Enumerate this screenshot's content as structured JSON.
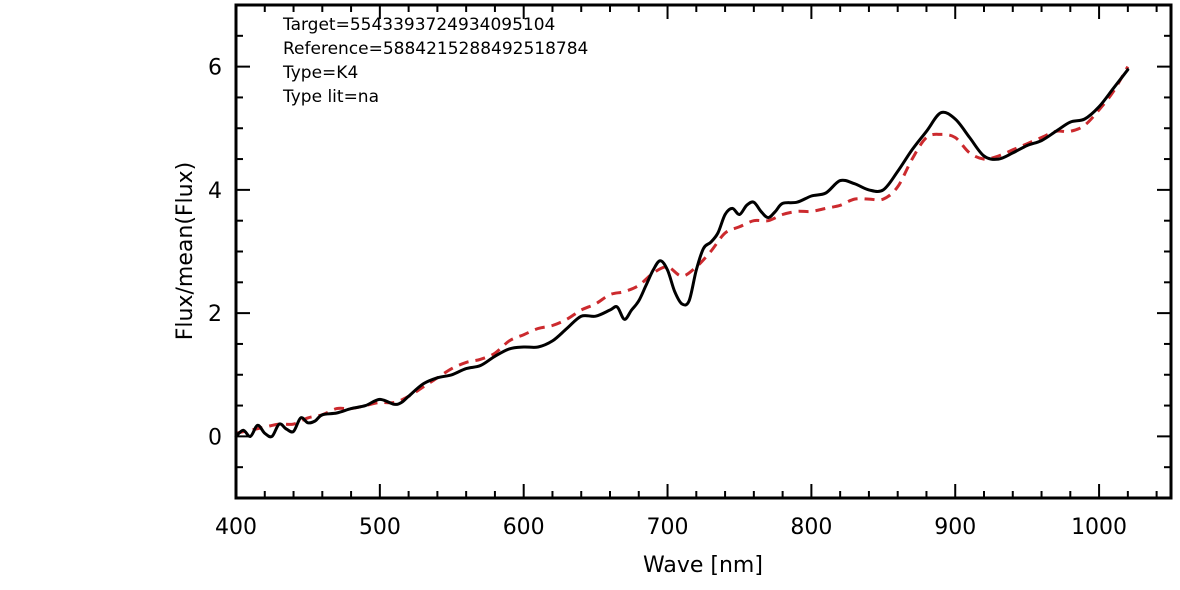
{
  "chart_data": {
    "type": "line",
    "xlabel": "Wave [nm]",
    "ylabel": "Flux/mean(Flux)",
    "xlim": [
      400,
      1050
    ],
    "ylim": [
      -1,
      7
    ],
    "x_ticks": [
      400,
      500,
      600,
      700,
      800,
      900,
      1000
    ],
    "x_tick_labels": [
      "400",
      "500",
      "600",
      "700",
      "800",
      "900",
      "1000"
    ],
    "y_ticks": [
      0,
      2,
      4,
      6
    ],
    "y_tick_labels": [
      "0",
      "2",
      "4",
      "6"
    ],
    "annotations": [
      "Target=5543393724934095104",
      "Reference=5884215288492518784",
      "Type=K4",
      "Type lit=na"
    ],
    "grid": false,
    "series": [
      {
        "color": "#000000",
        "style": "solid",
        "x": [
          400,
          405,
          410,
          415,
          420,
          425,
          430,
          435,
          440,
          445,
          450,
          455,
          460,
          470,
          480,
          490,
          500,
          510,
          515,
          520,
          530,
          540,
          550,
          560,
          570,
          580,
          590,
          600,
          610,
          620,
          630,
          640,
          650,
          660,
          665,
          670,
          675,
          680,
          685,
          690,
          695,
          700,
          705,
          710,
          715,
          720,
          725,
          730,
          735,
          740,
          745,
          750,
          755,
          760,
          765,
          770,
          775,
          780,
          790,
          800,
          810,
          820,
          830,
          840,
          850,
          860,
          870,
          880,
          890,
          900,
          910,
          920,
          930,
          940,
          950,
          960,
          970,
          980,
          990,
          1000,
          1010,
          1020
        ],
        "y": [
          0.0,
          0.1,
          0.0,
          0.18,
          0.05,
          0.0,
          0.2,
          0.12,
          0.08,
          0.3,
          0.22,
          0.25,
          0.35,
          0.38,
          0.45,
          0.5,
          0.6,
          0.52,
          0.55,
          0.65,
          0.85,
          0.95,
          1.0,
          1.1,
          1.15,
          1.3,
          1.42,
          1.45,
          1.45,
          1.55,
          1.75,
          1.95,
          1.95,
          2.05,
          2.1,
          1.9,
          2.05,
          2.2,
          2.45,
          2.7,
          2.85,
          2.7,
          2.35,
          2.15,
          2.2,
          2.7,
          3.05,
          3.15,
          3.3,
          3.6,
          3.7,
          3.6,
          3.75,
          3.8,
          3.65,
          3.55,
          3.65,
          3.78,
          3.8,
          3.9,
          3.95,
          4.15,
          4.1,
          4.0,
          4.0,
          4.3,
          4.65,
          4.95,
          5.25,
          5.15,
          4.85,
          4.55,
          4.5,
          4.6,
          4.72,
          4.8,
          4.95,
          5.1,
          5.15,
          5.35,
          5.65,
          5.95
        ]
      },
      {
        "color": "#cc2a2e",
        "style": "dashed",
        "x": [
          400,
          410,
          420,
          430,
          440,
          450,
          460,
          470,
          480,
          490,
          500,
          510,
          520,
          530,
          540,
          550,
          560,
          570,
          580,
          590,
          600,
          610,
          620,
          630,
          640,
          650,
          660,
          670,
          680,
          690,
          700,
          710,
          720,
          730,
          740,
          750,
          760,
          770,
          780,
          790,
          800,
          810,
          820,
          830,
          840,
          850,
          860,
          870,
          880,
          890,
          900,
          910,
          920,
          930,
          940,
          950,
          960,
          970,
          980,
          990,
          1000,
          1010,
          1020
        ],
        "y": [
          0.05,
          0.1,
          0.15,
          0.2,
          0.2,
          0.3,
          0.35,
          0.45,
          0.45,
          0.5,
          0.55,
          0.55,
          0.65,
          0.8,
          0.95,
          1.1,
          1.2,
          1.25,
          1.35,
          1.55,
          1.65,
          1.75,
          1.8,
          1.9,
          2.05,
          2.15,
          2.3,
          2.35,
          2.45,
          2.65,
          2.75,
          2.6,
          2.75,
          3.0,
          3.3,
          3.4,
          3.5,
          3.5,
          3.6,
          3.65,
          3.65,
          3.7,
          3.75,
          3.85,
          3.85,
          3.85,
          4.05,
          4.5,
          4.85,
          4.9,
          4.85,
          4.6,
          4.5,
          4.55,
          4.65,
          4.75,
          4.85,
          4.95,
          4.95,
          5.05,
          5.3,
          5.6,
          6.0
        ]
      }
    ]
  }
}
